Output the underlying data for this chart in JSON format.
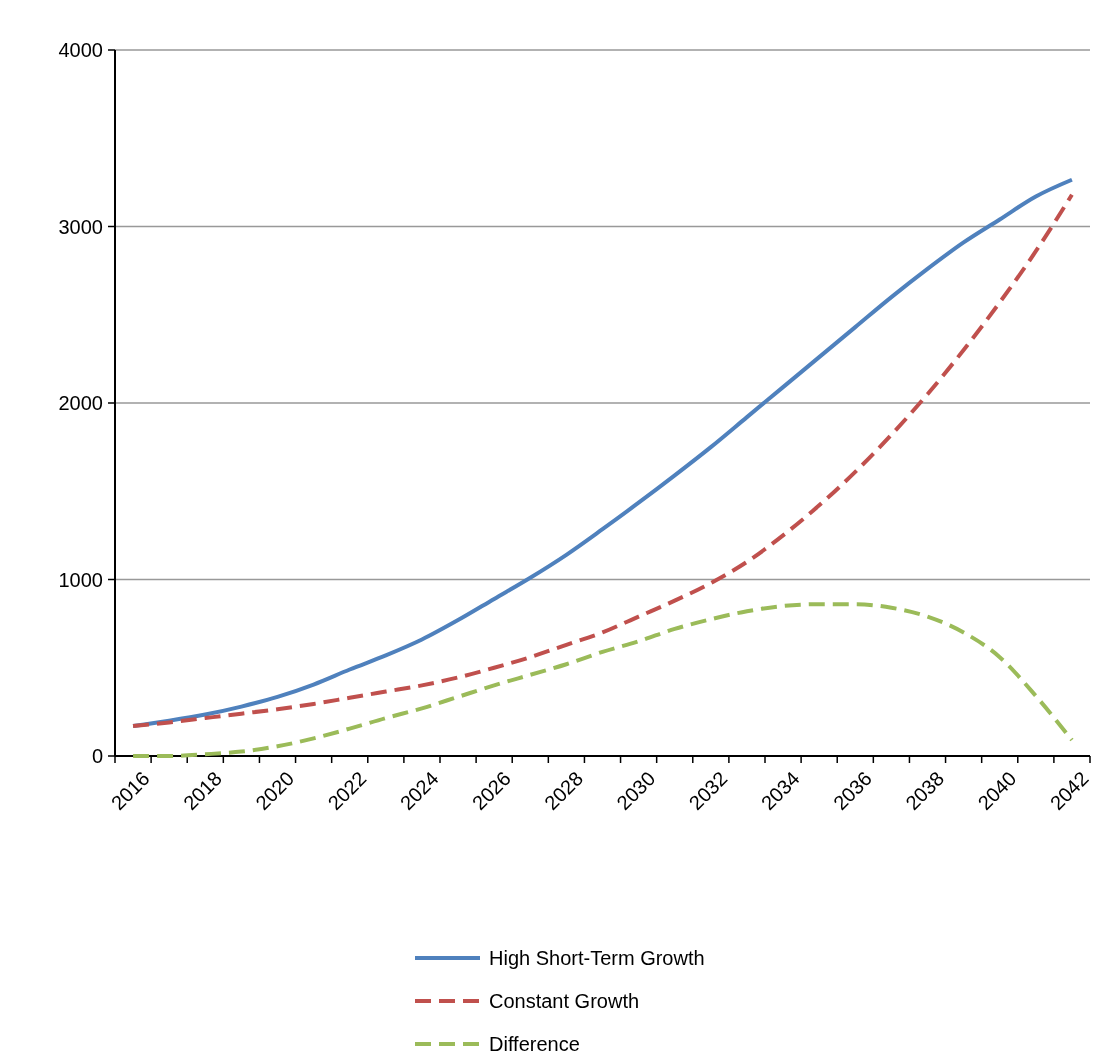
{
  "chart_data": {
    "type": "line",
    "categories": [
      "2016",
      null,
      "2018",
      null,
      "2020",
      null,
      "2022",
      null,
      "2024",
      null,
      "2026",
      null,
      "2028",
      null,
      "2030",
      null,
      "2032",
      null,
      "2034",
      null,
      "2036",
      null,
      "2038",
      null,
      "2040",
      null,
      "2042"
    ],
    "series": [
      {
        "name": "High Short-Term Growth",
        "color": "#4f81bd",
        "line_style": "solid",
        "values": [
          170,
          200,
          235,
          280,
          335,
          405,
          490,
          570,
          660,
          770,
          890,
          1010,
          1140,
          1285,
          1435,
          1590,
          1750,
          1920,
          2090,
          2260,
          2430,
          2600,
          2760,
          2910,
          3040,
          3170,
          3265
        ]
      },
      {
        "name": "Constant Growth",
        "color": "#c0504d",
        "line_style": "dashed",
        "values": [
          170,
          190,
          215,
          240,
          265,
          295,
          330,
          365,
          400,
          445,
          500,
          560,
          630,
          700,
          790,
          880,
          980,
          1100,
          1250,
          1420,
          1610,
          1820,
          2050,
          2300,
          2570,
          2860,
          3180
        ]
      },
      {
        "name": "Difference",
        "color": "#9bbb59",
        "line_style": "dashed",
        "values": [
          0,
          0,
          10,
          25,
          55,
          100,
          155,
          215,
          270,
          335,
          400,
          460,
          520,
          590,
          650,
          720,
          775,
          820,
          850,
          860,
          860,
          840,
          790,
          700,
          560,
          340,
          90
        ]
      }
    ],
    "ylim": [
      0,
      4000
    ],
    "yticks": [
      0,
      1000,
      2000,
      3000,
      4000
    ],
    "grid": "y",
    "legend": "bottom",
    "marker": "none"
  }
}
